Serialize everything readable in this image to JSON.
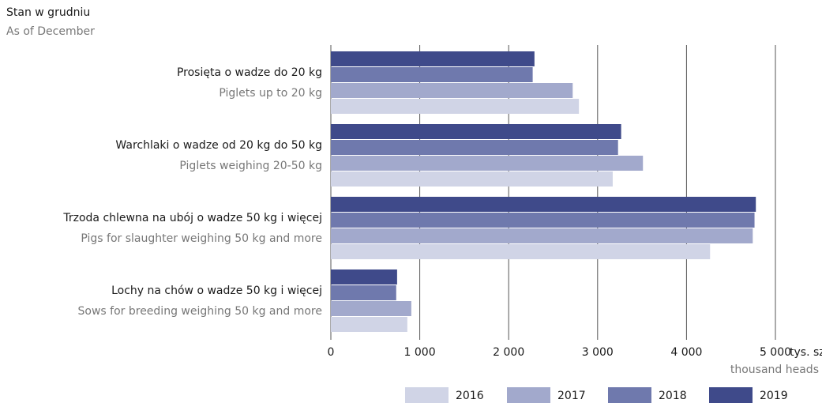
{
  "chart_data": {
    "type": "barh",
    "title": "Stan w grudniu",
    "subtitle": "As of December",
    "x_label": "tys. szt.",
    "x_label_en": "thousand heads",
    "categories": [
      "Prosięta o wadze do 20 kg",
      "Warchlaki o wadze od 20 kg do 50 kg",
      "Trzoda chlewna na ubój o wadze 50 kg i więcej",
      "Lochy na chów o wadze 50 kg i więcej"
    ],
    "categories_en": [
      "Piglets up to 20 kg",
      "Piglets weighing 20-50 kg",
      "Pigs for slaughter weighing 50 kg and more",
      "Sows for breeding weighing 50 kg and more"
    ],
    "series": [
      {
        "name": "2016",
        "color": "#d0d4e6",
        "values": [
          2790,
          3170,
          4265,
          860
        ]
      },
      {
        "name": "2017",
        "color": "#a2a9cc",
        "values": [
          2720,
          3510,
          4745,
          905
        ]
      },
      {
        "name": "2018",
        "color": "#6f79ad",
        "values": [
          2270,
          3230,
          4765,
          735
        ]
      },
      {
        "name": "2019",
        "color": "#3f4a8a",
        "values": [
          2290,
          3265,
          4780,
          745
        ]
      }
    ],
    "xlim": [
      0,
      5000
    ],
    "xticks": [
      0,
      {
        "value": 1000,
        "label": "1 000"
      },
      {
        "value": 2000,
        "label": "2 000"
      },
      {
        "value": 3000,
        "label": "3 000"
      },
      {
        "value": 4000,
        "label": "4 000"
      },
      {
        "value": 5000,
        "label": "5 000"
      }
    ],
    "grid": true
  }
}
